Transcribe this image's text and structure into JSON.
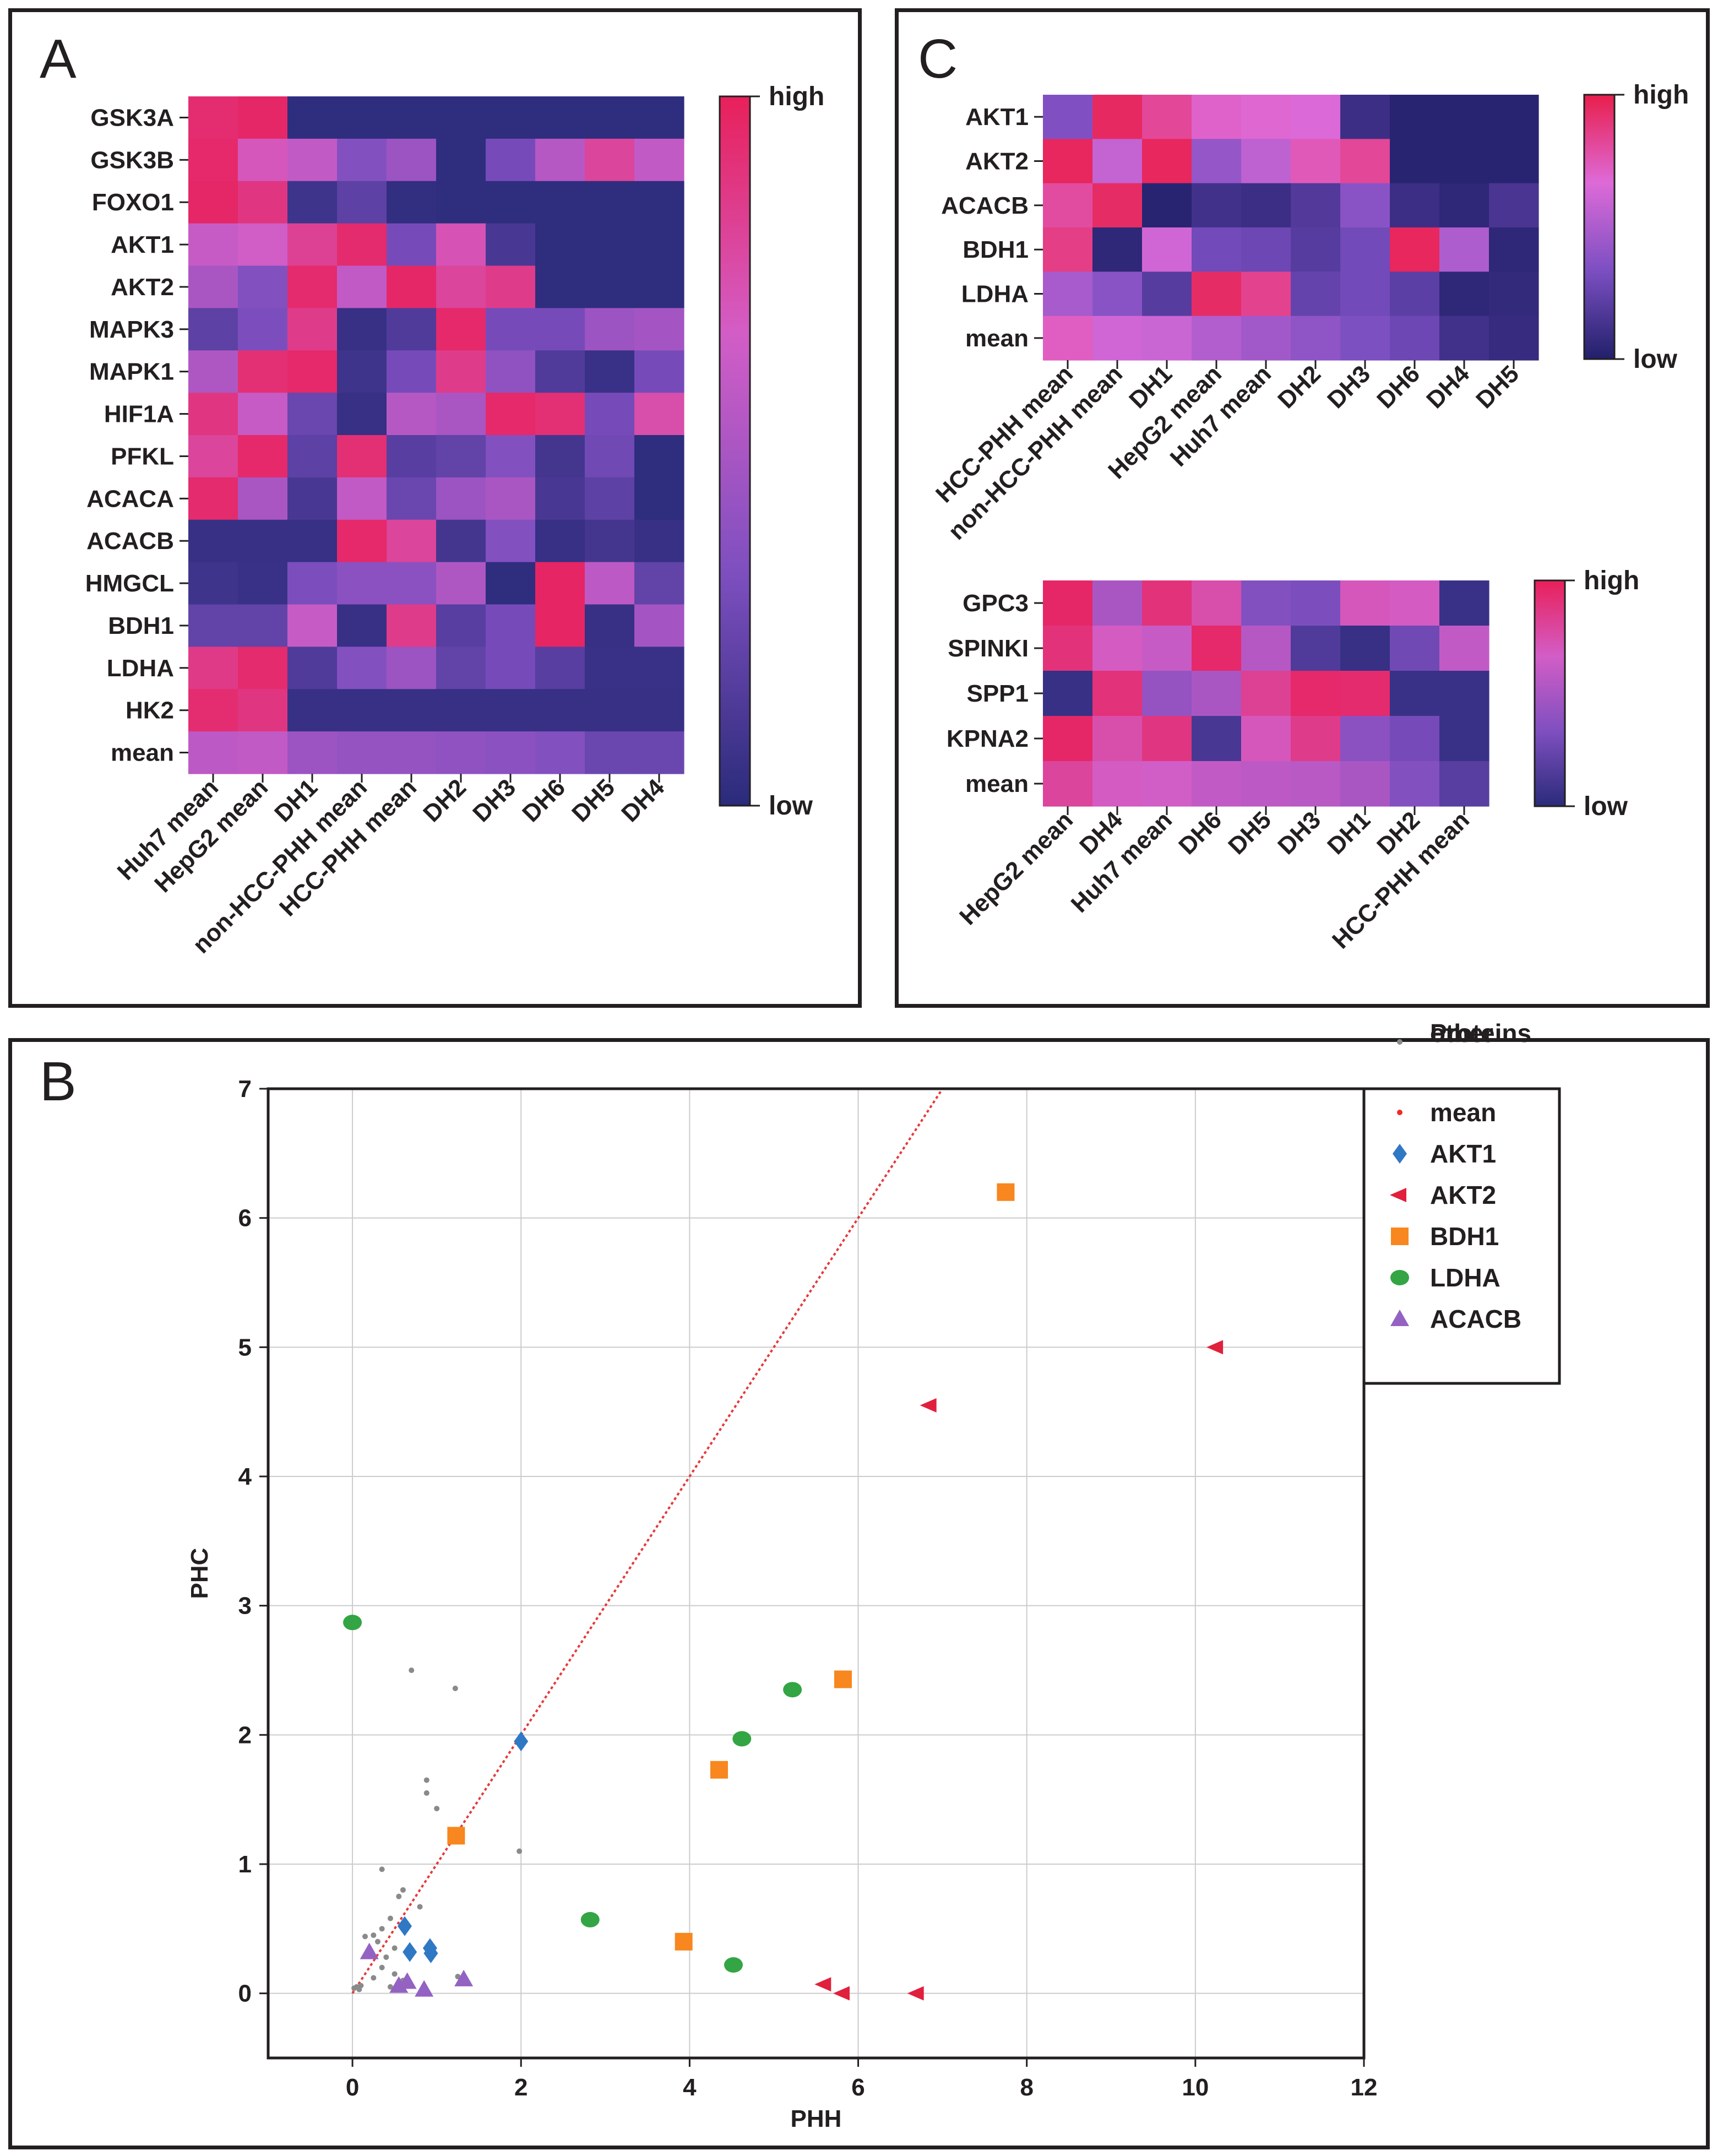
{
  "panels": {
    "a": "A",
    "b": "B",
    "c": "C"
  },
  "chart_data": [
    {
      "type": "heatmap",
      "panel": "A",
      "rows": [
        "GSK3A",
        "GSK3B",
        "FOXO1",
        "AKT1",
        "AKT2",
        "MAPK3",
        "MAPK1",
        "HIF1A",
        "PFKL",
        "ACACA",
        "ACACB",
        "HMGCL",
        "BDH1",
        "LDHA",
        "HK2",
        "mean"
      ],
      "columns": [
        "Huh7 mean",
        "HepG2 mean",
        "DH1",
        "non-HCC-PHH mean",
        "HCC-PHH mean",
        "DH2",
        "DH3",
        "DH6",
        "DH5",
        "DH4"
      ],
      "values": [
        [
          0.93,
          0.96,
          0.02,
          0.02,
          0.02,
          0.02,
          0.02,
          0.02,
          0.02,
          0.02
        ],
        [
          0.95,
          0.7,
          0.6,
          0.35,
          0.45,
          0.02,
          0.3,
          0.55,
          0.8,
          0.6
        ],
        [
          0.96,
          0.88,
          0.08,
          0.2,
          0.03,
          0.02,
          0.02,
          0.02,
          0.02,
          0.02
        ],
        [
          0.62,
          0.66,
          0.82,
          0.94,
          0.3,
          0.72,
          0.12,
          0.02,
          0.02,
          0.02
        ],
        [
          0.5,
          0.35,
          0.94,
          0.6,
          0.96,
          0.8,
          0.85,
          0.02,
          0.02,
          0.02
        ],
        [
          0.2,
          0.32,
          0.85,
          0.05,
          0.15,
          0.95,
          0.3,
          0.3,
          0.45,
          0.48
        ],
        [
          0.52,
          0.92,
          0.95,
          0.08,
          0.3,
          0.85,
          0.4,
          0.15,
          0.06,
          0.3
        ],
        [
          0.88,
          0.62,
          0.25,
          0.05,
          0.55,
          0.5,
          0.95,
          0.92,
          0.3,
          0.75
        ],
        [
          0.8,
          0.95,
          0.2,
          0.92,
          0.18,
          0.22,
          0.35,
          0.1,
          0.28,
          0.02
        ],
        [
          0.94,
          0.5,
          0.12,
          0.6,
          0.25,
          0.45,
          0.5,
          0.12,
          0.2,
          0.02
        ],
        [
          0.05,
          0.05,
          0.05,
          0.95,
          0.8,
          0.1,
          0.35,
          0.05,
          0.1,
          0.05
        ],
        [
          0.08,
          0.06,
          0.32,
          0.38,
          0.38,
          0.52,
          0.02,
          0.97,
          0.58,
          0.22
        ],
        [
          0.22,
          0.22,
          0.62,
          0.05,
          0.85,
          0.18,
          0.3,
          0.97,
          0.05,
          0.48
        ],
        [
          0.86,
          0.94,
          0.15,
          0.35,
          0.45,
          0.22,
          0.3,
          0.18,
          0.06,
          0.06
        ],
        [
          0.93,
          0.88,
          0.05,
          0.05,
          0.05,
          0.05,
          0.05,
          0.05,
          0.05,
          0.05
        ],
        [
          0.58,
          0.6,
          0.45,
          0.42,
          0.42,
          0.4,
          0.38,
          0.35,
          0.25,
          0.25
        ]
      ],
      "colorbar": {
        "high": "high",
        "low": "low"
      },
      "colorscale": [
        "#2a2b7a",
        "#7f4fc0",
        "#d35dc6",
        "#e8205a"
      ]
    },
    {
      "type": "heatmap",
      "panel": "C-top",
      "rows": [
        "AKT1",
        "AKT2",
        "ACACB",
        "BDH1",
        "LDHA",
        "mean"
      ],
      "columns": [
        "HCC-PHH mean",
        "non-HCC-PHH mean",
        "DH1",
        "HepG2 mean",
        "Huh7 mean",
        "DH2",
        "DH3",
        "DH6",
        "DH4",
        "DH5"
      ],
      "values": [
        [
          0.35,
          0.95,
          0.82,
          0.7,
          0.68,
          0.66,
          0.1,
          0.03,
          0.03,
          0.03
        ],
        [
          0.96,
          0.58,
          0.96,
          0.42,
          0.56,
          0.74,
          0.82,
          0.03,
          0.03,
          0.03
        ],
        [
          0.8,
          0.94,
          0.03,
          0.12,
          0.1,
          0.18,
          0.38,
          0.1,
          0.05,
          0.15
        ],
        [
          0.86,
          0.05,
          0.62,
          0.3,
          0.28,
          0.2,
          0.3,
          0.96,
          0.5,
          0.05
        ],
        [
          0.48,
          0.38,
          0.2,
          0.94,
          0.84,
          0.25,
          0.3,
          0.22,
          0.05,
          0.07
        ],
        [
          0.72,
          0.62,
          0.6,
          0.52,
          0.46,
          0.4,
          0.34,
          0.28,
          0.12,
          0.08
        ]
      ],
      "colorbar": {
        "high": "high",
        "low": "low"
      },
      "colorscale": [
        "#21206a",
        "#7b4fc2",
        "#de6ad8",
        "#e81e4c"
      ]
    },
    {
      "type": "heatmap",
      "panel": "C-bottom",
      "rows": [
        "GPC3",
        "SPINKI",
        "SPP1",
        "KPNA2",
        "mean"
      ],
      "columns": [
        "HepG2 mean",
        "DH4",
        "Huh7 mean",
        "DH6",
        "DH5",
        "DH3",
        "DH1",
        "DH2",
        "HCC-PHH mean"
      ],
      "values": [
        [
          0.96,
          0.5,
          0.9,
          0.75,
          0.35,
          0.32,
          0.7,
          0.68,
          0.06
        ],
        [
          0.9,
          0.68,
          0.62,
          0.95,
          0.55,
          0.15,
          0.05,
          0.28,
          0.6
        ],
        [
          0.05,
          0.9,
          0.42,
          0.5,
          0.82,
          0.95,
          0.94,
          0.06,
          0.06
        ],
        [
          0.96,
          0.75,
          0.88,
          0.12,
          0.7,
          0.85,
          0.38,
          0.3,
          0.06
        ],
        [
          0.8,
          0.68,
          0.66,
          0.6,
          0.58,
          0.56,
          0.5,
          0.35,
          0.18
        ]
      ],
      "colorbar": {
        "high": "high",
        "low": "low"
      },
      "colorscale": [
        "#2a2b7a",
        "#7f4fc0",
        "#d35dc6",
        "#e8205a"
      ]
    },
    {
      "type": "scatter",
      "panel": "B",
      "xlabel": "PHH",
      "ylabel": "PHC",
      "xlim": [
        -1,
        12
      ],
      "ylim": [
        -0.5,
        7
      ],
      "xticks": [
        0,
        2,
        4,
        6,
        8,
        10,
        12
      ],
      "yticks": [
        0,
        1,
        2,
        3,
        4,
        5,
        6,
        7
      ],
      "grid": true,
      "legend_position": "top-right",
      "trendline": {
        "name": "mean",
        "color": "#e53a3a",
        "slope": 1,
        "intercept": 0
      },
      "series": [
        {
          "name": "mean",
          "marker": "dot",
          "color": "#ee2a2a",
          "points": []
        },
        {
          "name": "AKT1",
          "marker": "diamond",
          "color": "#2f78c4",
          "points": [
            [
              2.0,
              1.95
            ],
            [
              0.62,
              0.52
            ],
            [
              0.68,
              0.32
            ],
            [
              0.92,
              0.35
            ],
            [
              0.93,
              0.31
            ]
          ]
        },
        {
          "name": "AKT2",
          "marker": "triangle-left",
          "color": "#e0203c",
          "points": [
            [
              10.25,
              5.0
            ],
            [
              6.85,
              4.55
            ],
            [
              5.6,
              0.07
            ],
            [
              5.82,
              0.0
            ],
            [
              6.7,
              0.0
            ]
          ]
        },
        {
          "name": "BDH1",
          "marker": "square",
          "color": "#f7871e",
          "points": [
            [
              7.75,
              6.2
            ],
            [
              5.82,
              2.43
            ],
            [
              4.35,
              1.73
            ],
            [
              1.23,
              1.22
            ],
            [
              3.93,
              0.4
            ]
          ]
        },
        {
          "name": "LDHA",
          "marker": "circle",
          "color": "#33a544",
          "points": [
            [
              0.0,
              2.87
            ],
            [
              5.22,
              2.35
            ],
            [
              4.62,
              1.97
            ],
            [
              2.82,
              0.57
            ],
            [
              4.52,
              0.22
            ]
          ]
        },
        {
          "name": "ACACB",
          "marker": "triangle-up",
          "color": "#9462c2",
          "points": [
            [
              0.2,
              0.32
            ],
            [
              0.55,
              0.06
            ],
            [
              0.65,
              0.09
            ],
            [
              0.85,
              0.03
            ],
            [
              1.32,
              0.11
            ]
          ]
        },
        {
          "name": "other\nProteins",
          "label_lines": [
            "other",
            "Proteins"
          ],
          "marker": "dot",
          "color": "#8a8a8a",
          "points": [
            [
              0.7,
              2.5
            ],
            [
              1.22,
              2.36
            ],
            [
              0.88,
              1.65
            ],
            [
              0.88,
              1.55
            ],
            [
              1.0,
              1.43
            ],
            [
              1.98,
              1.1
            ],
            [
              0.35,
              0.96
            ],
            [
              0.6,
              0.8
            ],
            [
              0.55,
              0.75
            ],
            [
              0.8,
              0.67
            ],
            [
              0.45,
              0.58
            ],
            [
              0.35,
              0.5
            ],
            [
              0.25,
              0.45
            ],
            [
              0.15,
              0.44
            ],
            [
              0.3,
              0.4
            ],
            [
              0.5,
              0.35
            ],
            [
              0.22,
              0.3
            ],
            [
              0.4,
              0.28
            ],
            [
              0.35,
              0.2
            ],
            [
              0.5,
              0.15
            ],
            [
              0.25,
              0.12
            ],
            [
              1.25,
              0.13
            ],
            [
              0.6,
              0.1
            ],
            [
              0.45,
              0.05
            ],
            [
              0.1,
              0.06
            ],
            [
              0.05,
              0.05
            ],
            [
              0.02,
              0.04
            ],
            [
              0.08,
              0.03
            ]
          ]
        }
      ]
    }
  ]
}
